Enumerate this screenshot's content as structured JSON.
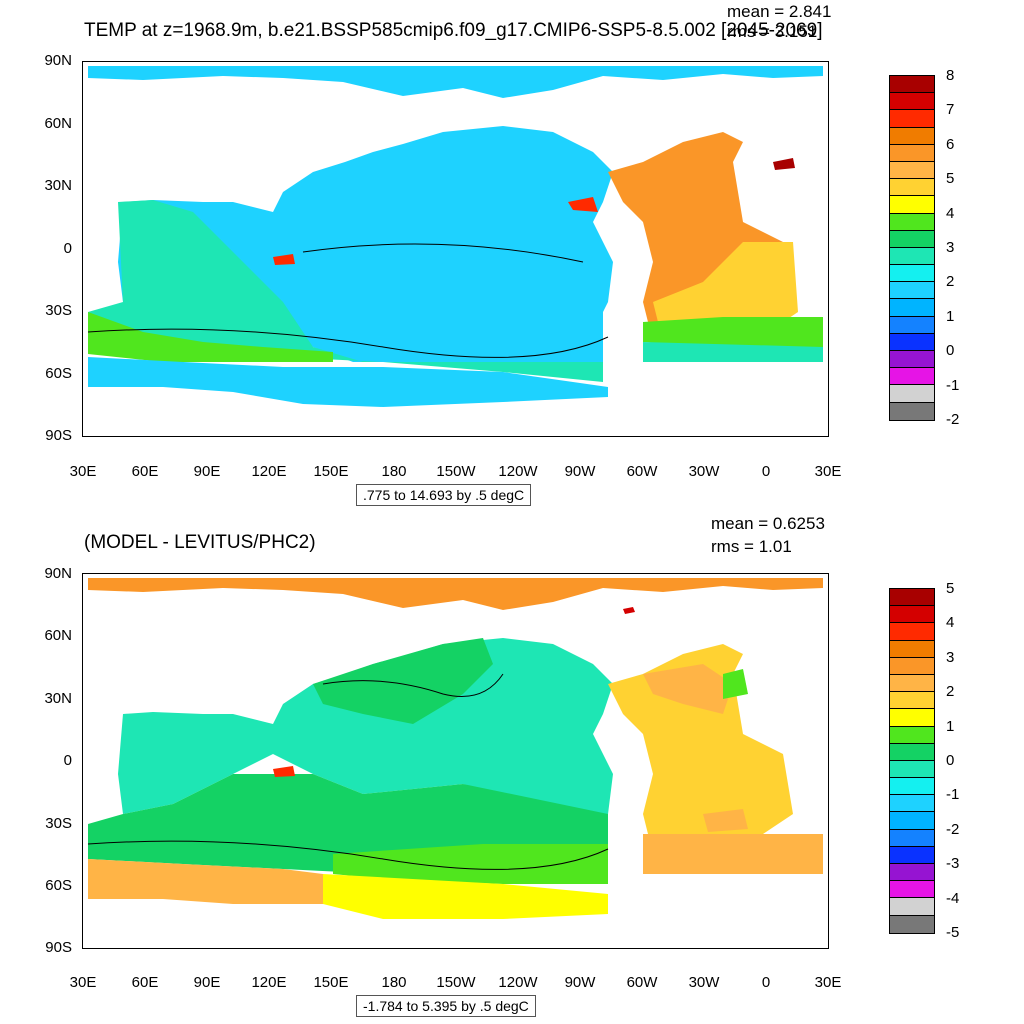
{
  "panel1": {
    "title": "TEMP at z=1968.9m, b.e21.BSSP585cmip6.f09_g17.CMIP6-SSP5-8.5.002 [2045-2069]",
    "mean": "mean = 2.841",
    "rms": "rms = 3.151",
    "contour_info": ".775 to 14.693 by .5 degC",
    "colorbar_labels": [
      "8",
      "7",
      "6",
      "5",
      "4",
      "3",
      "2",
      "1",
      "0",
      "-1",
      "-2"
    ],
    "colorbar_colors": [
      "#a80000",
      "#d40000",
      "#ff2a00",
      "#f07c00",
      "#fa9628",
      "#ffb446",
      "#ffd232",
      "#ffff00",
      "#50e61e",
      "#14d264",
      "#1ee6b4",
      "#14f0f0",
      "#1ed2ff",
      "#00b4ff",
      "#1482ff",
      "#0a32ff",
      "#9614d2",
      "#e614e6",
      "#d2d2d2",
      "#787878"
    ]
  },
  "panel2": {
    "title": "(MODEL - LEVITUS/PHC2)",
    "mean": "mean = 0.6253",
    "rms": "rms = 1.01",
    "contour_info": "-1.784 to 5.395 by .5 degC",
    "colorbar_labels": [
      "5",
      "4",
      "3",
      "2",
      "1",
      "0",
      "-1",
      "-2",
      "-3",
      "-4",
      "-5"
    ],
    "colorbar_colors": [
      "#a80000",
      "#d40000",
      "#ff2a00",
      "#f07c00",
      "#fa9628",
      "#ffb446",
      "#ffd232",
      "#ffff00",
      "#50e61e",
      "#14d264",
      "#1ee6b4",
      "#14f0f0",
      "#1ed2ff",
      "#00b4ff",
      "#1482ff",
      "#0a32ff",
      "#9614d2",
      "#e614e6",
      "#d2d2d2",
      "#787878"
    ]
  },
  "axes": {
    "lat_labels": [
      "90N",
      "60N",
      "30N",
      "0",
      "30S",
      "60S",
      "90S"
    ],
    "lon_labels": [
      "30E",
      "60E",
      "90E",
      "120E",
      "150E",
      "180",
      "150W",
      "120W",
      "90W",
      "60W",
      "30W",
      "0",
      "30E"
    ]
  }
}
